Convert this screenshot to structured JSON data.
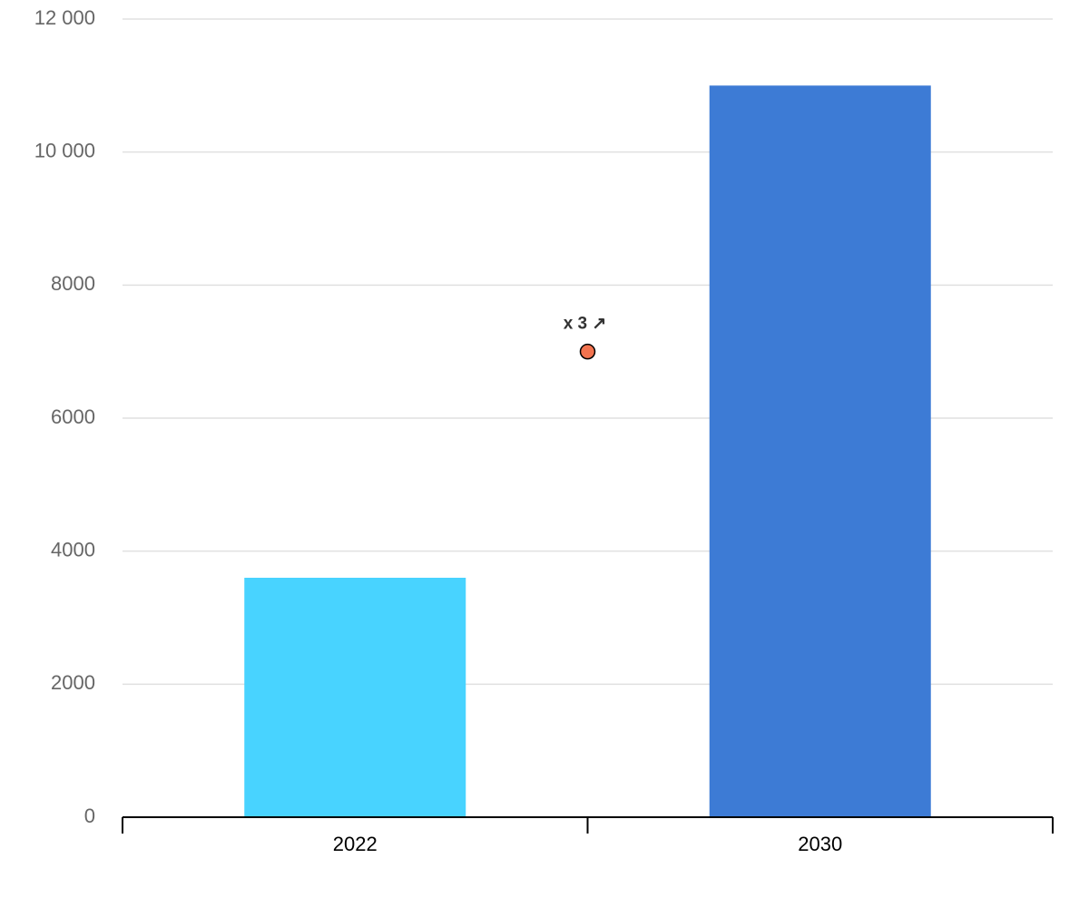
{
  "chart_data": {
    "type": "bar",
    "categories": [
      "2022",
      "2030"
    ],
    "values": [
      3600,
      11000
    ],
    "colors": [
      "#48d3ff",
      "#3d7bd5"
    ],
    "ylim": [
      0,
      12000
    ],
    "yticks": [
      0,
      2000,
      4000,
      6000,
      8000,
      {
        "value": 10000,
        "label": "10 000"
      },
      {
        "value": 12000,
        "label": "12 000"
      }
    ],
    "grid": true,
    "annotation": {
      "text": "x 3 ↗",
      "value": 7000,
      "color": "#f2734f"
    }
  }
}
